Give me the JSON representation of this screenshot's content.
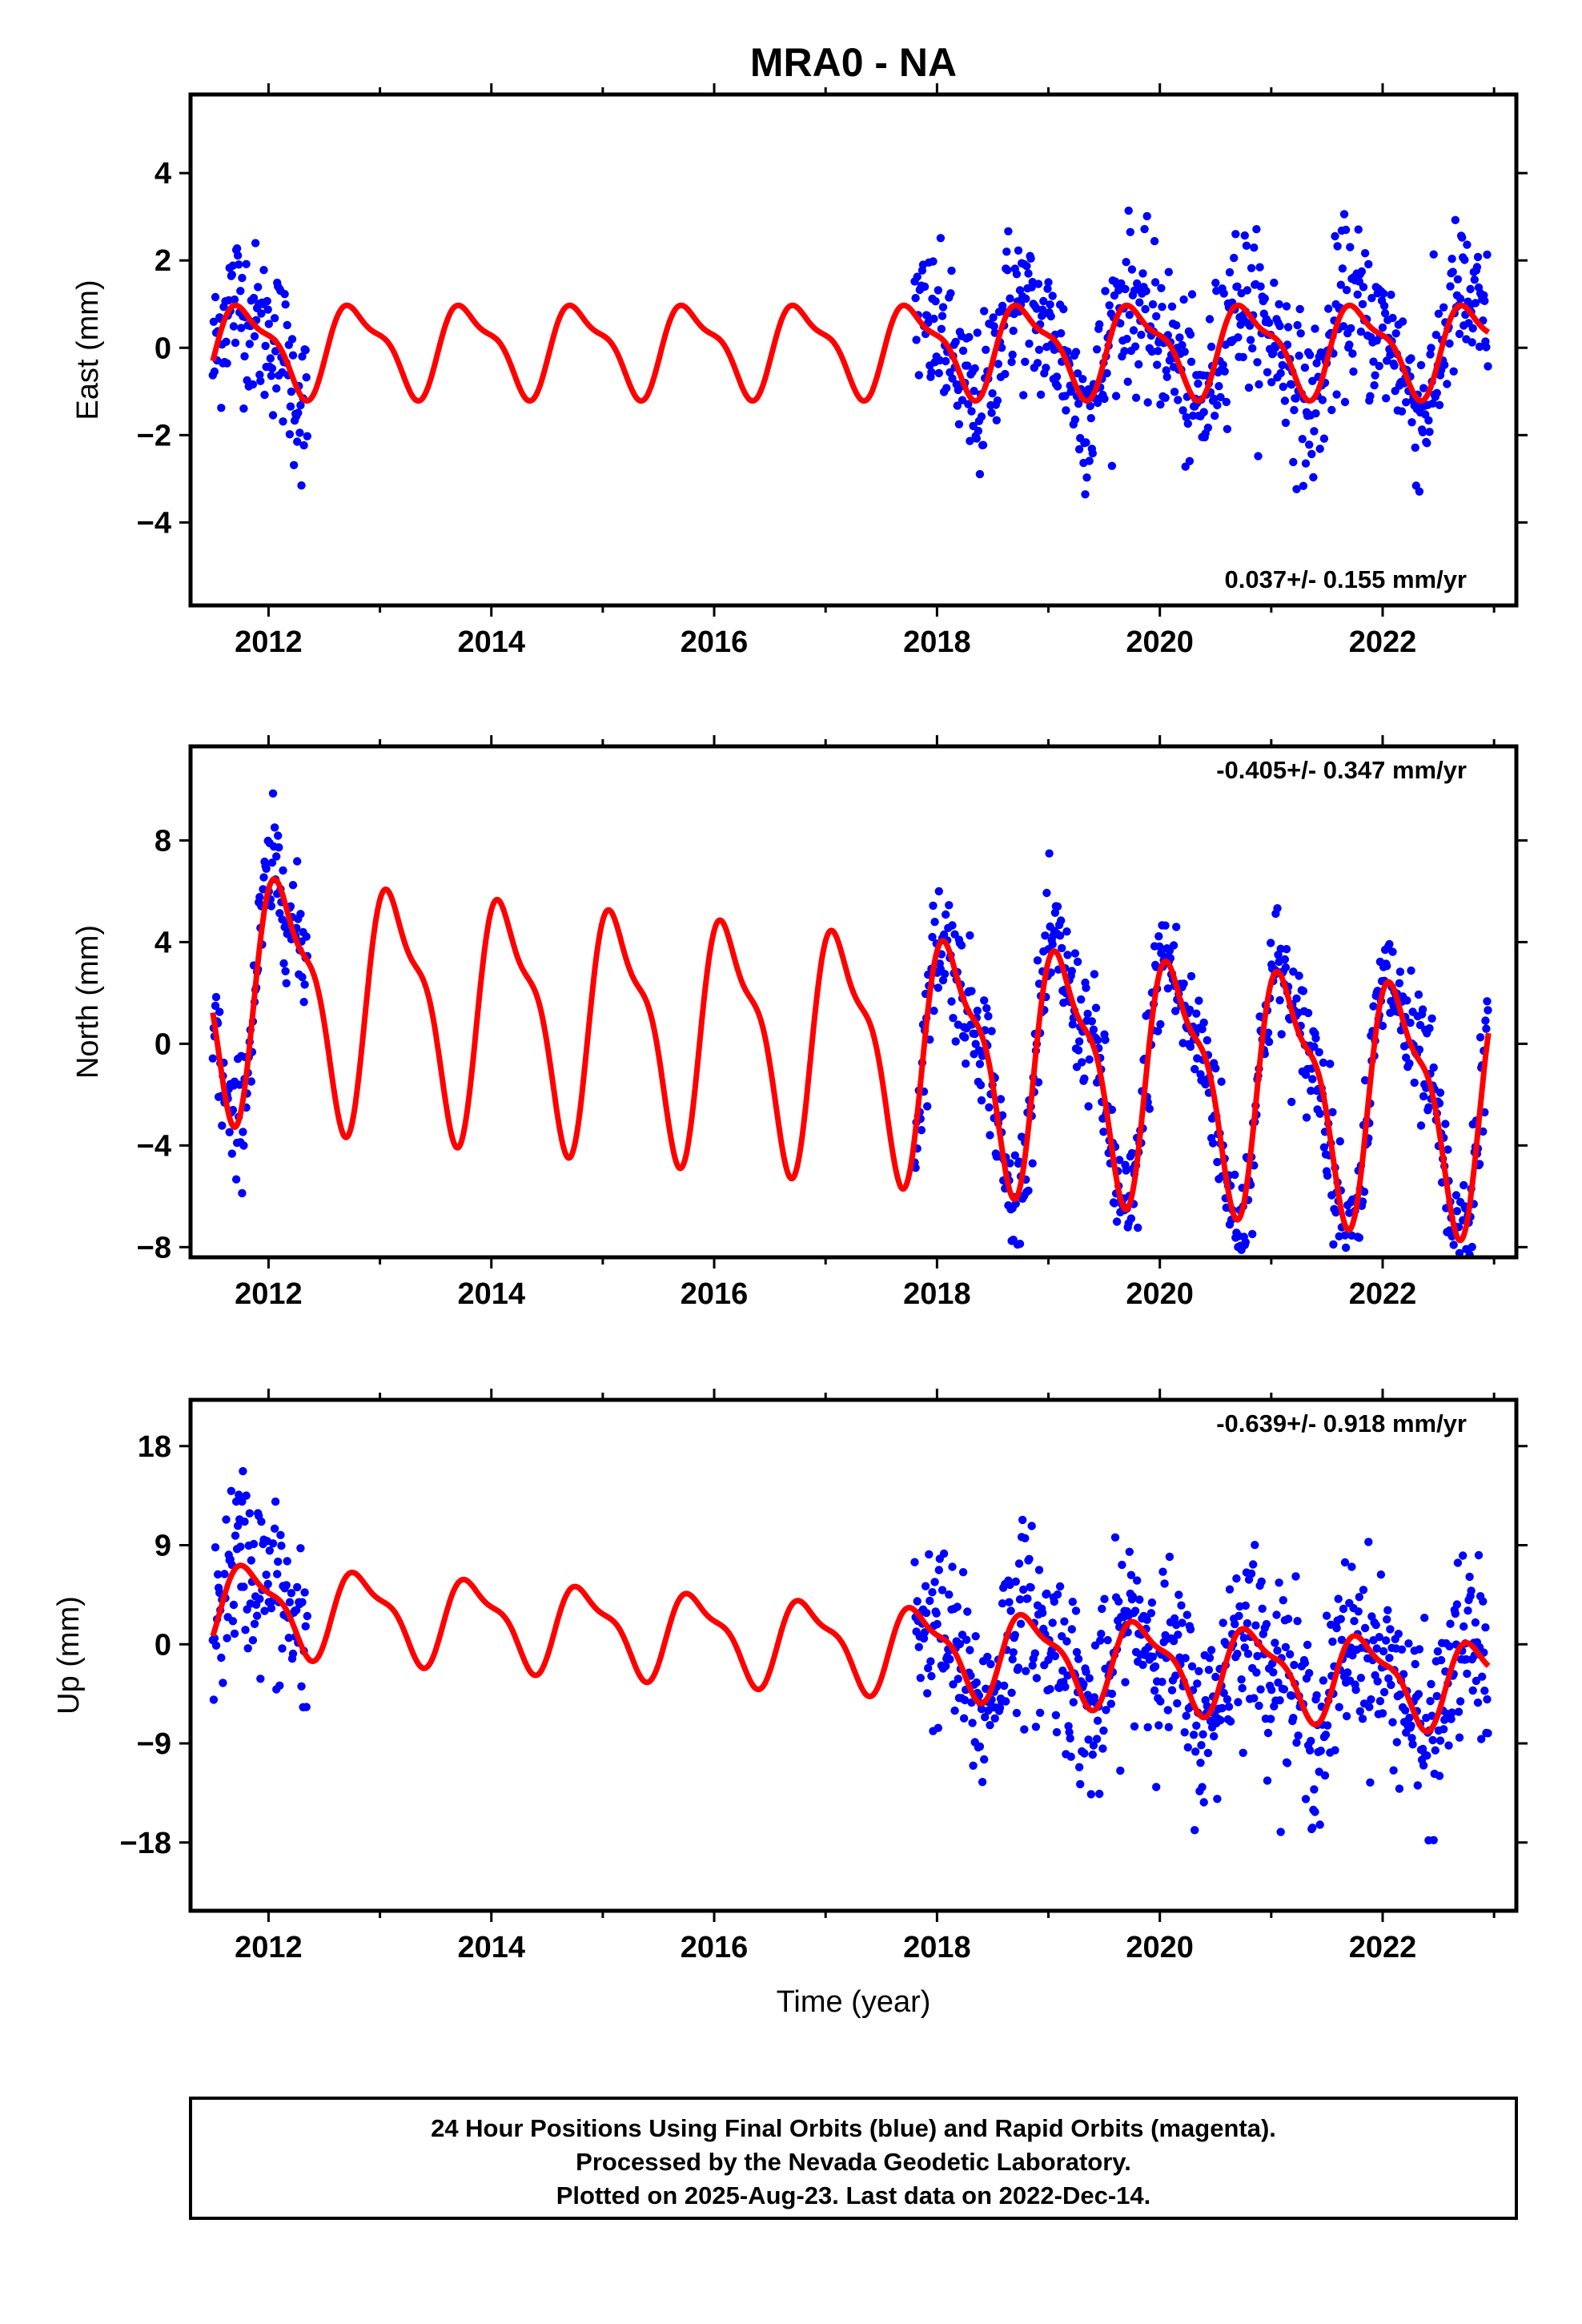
{
  "title": "MRA0 - NA",
  "colors": {
    "points": "#0000ff",
    "model": "#ff0000",
    "frame": "#000000"
  },
  "chart_data": [
    {
      "type": "scatter",
      "name": "east",
      "ylabel": "East (mm)",
      "rate_label": "0.037+/- 0.155 mm/yr",
      "xlim": [
        2011.3,
        2023.2
      ],
      "ylim": [
        -5.9,
        5.8
      ],
      "yticks": [
        -4,
        -2,
        0,
        2,
        4
      ],
      "xticks": [
        2012,
        2014,
        2016,
        2018,
        2020,
        2022
      ],
      "series_points": {
        "color": "points",
        "spread": 1.0,
        "amp": 1.1
      },
      "series_model": {
        "color": "model",
        "amp": 0.95,
        "phase": 0.55,
        "trend": 0.0
      }
    },
    {
      "type": "scatter",
      "name": "north",
      "ylabel": "North (mm)",
      "rate_label": "-0.405+/- 0.347 mm/yr",
      "xlim": [
        2011.3,
        2023.2
      ],
      "ylim": [
        -8.4,
        11.7
      ],
      "yticks": [
        -8,
        -4,
        0,
        4,
        8
      ],
      "xticks": [
        2012,
        2014,
        2016,
        2018,
        2020,
        2022
      ],
      "series_points": {
        "color": "points",
        "spread": 1.4,
        "amp": 4.5
      },
      "series_model": {
        "color": "model",
        "amp": 4.3,
        "phase": 0.9,
        "trend": -0.405
      }
    },
    {
      "type": "scatter",
      "name": "up",
      "ylabel": "Up (mm)",
      "rate_label": "-0.639+/- 0.918 mm/yr",
      "xlim": [
        2011.3,
        2023.2
      ],
      "ylim": [
        -24.2,
        22.2
      ],
      "yticks": [
        -18,
        -9,
        0,
        9,
        18
      ],
      "xticks": [
        2012,
        2014,
        2016,
        2018,
        2020,
        2022
      ],
      "series_points": {
        "color": "points",
        "spread": 4.5,
        "amp": 4.0
      },
      "series_model": {
        "color": "model",
        "amp": 3.6,
        "phase": 0.6,
        "trend": -0.639
      }
    }
  ],
  "xlabel": "Time (year)",
  "data_segments": [
    [
      2011.5,
      2012.35
    ],
    [
      2017.8,
      2022.95
    ]
  ],
  "footer": {
    "line1": "24 Hour Positions Using Final Orbits (blue) and Rapid Orbits (magenta).",
    "line2": "Processed by the Nevada Geodetic Laboratory.",
    "line3": "Plotted on 2025-Aug-23. Last data on 2022-Dec-14."
  }
}
